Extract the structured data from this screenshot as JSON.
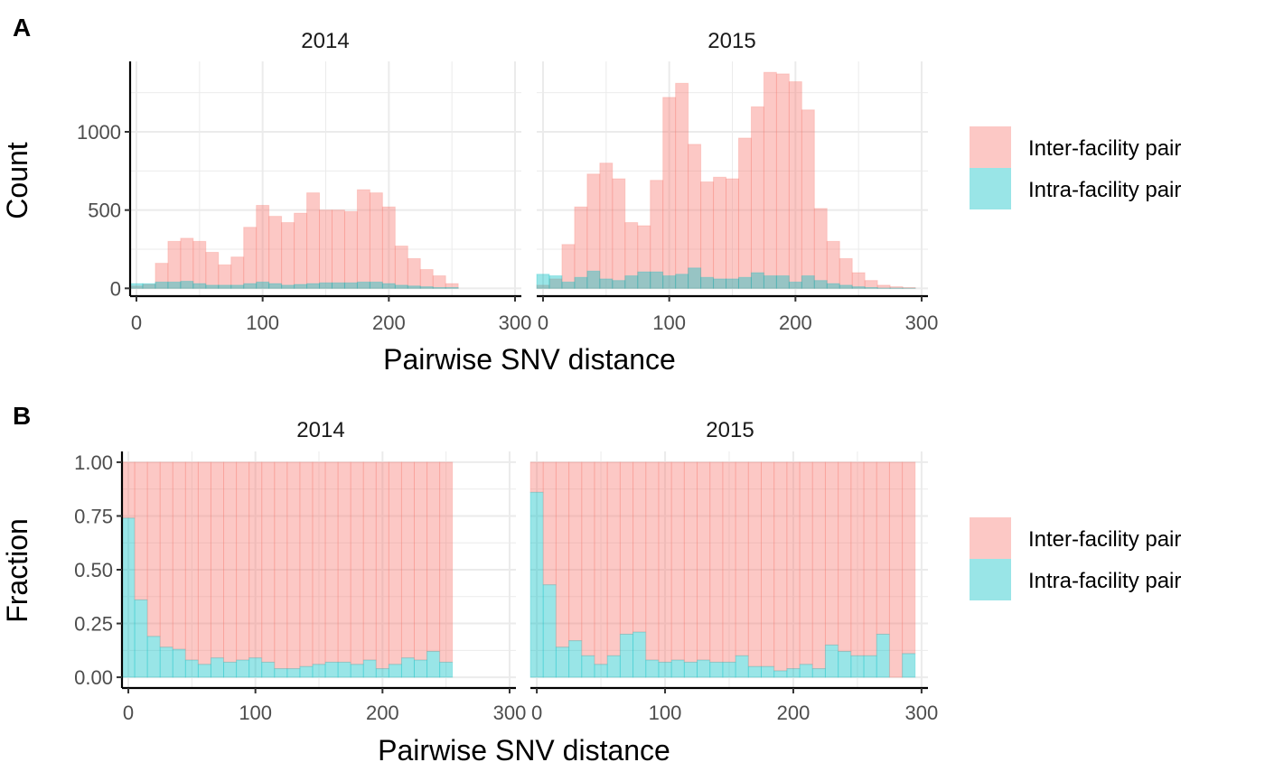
{
  "colors": {
    "inter": "#F8766D",
    "intra": "#00BFC4",
    "grid": "#EBEBEB",
    "axis": "#000000"
  },
  "panels": [
    {
      "tag": "A",
      "ylabel": "Count",
      "xlabel": "Pairwise SNV distance"
    },
    {
      "tag": "B",
      "ylabel": "Fraction",
      "xlabel": "Pairwise SNV distance"
    }
  ],
  "legend": {
    "items": [
      {
        "label": "Inter-facility pair",
        "color": "#F8766D"
      },
      {
        "label": "Intra-facility pair",
        "color": "#00BFC4"
      }
    ]
  },
  "chart_data": [
    {
      "type": "bar",
      "panel": "A",
      "position": "identity",
      "ylabel": "Count",
      "xlabel": "Pairwise SNV distance",
      "x_ticks": [
        0,
        100,
        200,
        300
      ],
      "y_ticks": [
        0,
        500,
        1000
      ],
      "xlim": [
        -5,
        305
      ],
      "ylim": [
        -50,
        1450
      ],
      "bin_width": 10,
      "facets": [
        {
          "title": "2014",
          "x": [
            0,
            10,
            20,
            30,
            40,
            50,
            60,
            70,
            80,
            90,
            100,
            110,
            120,
            130,
            140,
            150,
            160,
            170,
            180,
            190,
            200,
            210,
            220,
            230,
            240,
            250
          ],
          "series": [
            {
              "name": "Inter-facility pair",
              "values": [
                15,
                25,
                160,
                300,
                320,
                300,
                230,
                150,
                200,
                390,
                530,
                460,
                420,
                480,
                610,
                500,
                500,
                490,
                630,
                610,
                520,
                270,
                190,
                120,
                80,
                30
              ]
            },
            {
              "name": "Intra-facility pair",
              "values": [
                30,
                30,
                40,
                40,
                45,
                30,
                20,
                20,
                20,
                30,
                40,
                30,
                20,
                25,
                30,
                35,
                35,
                35,
                40,
                40,
                30,
                20,
                15,
                10,
                5,
                5
              ]
            }
          ]
        },
        {
          "title": "2015",
          "x": [
            0,
            10,
            20,
            30,
            40,
            50,
            60,
            70,
            80,
            90,
            100,
            110,
            120,
            130,
            140,
            150,
            160,
            170,
            180,
            190,
            200,
            210,
            220,
            230,
            240,
            250,
            260,
            270,
            280,
            290
          ],
          "series": [
            {
              "name": "Inter-facility pair",
              "values": [
                20,
                60,
                280,
                520,
                730,
                800,
                700,
                420,
                400,
                690,
                1220,
                1310,
                920,
                680,
                710,
                700,
                960,
                1160,
                1380,
                1370,
                1320,
                1140,
                510,
                300,
                190,
                100,
                50,
                20,
                10,
                5
              ]
            },
            {
              "name": "Intra-facility pair",
              "values": [
                90,
                80,
                40,
                70,
                110,
                60,
                50,
                80,
                105,
                105,
                80,
                90,
                130,
                70,
                60,
                60,
                70,
                100,
                80,
                80,
                40,
                80,
                50,
                30,
                20,
                10,
                5,
                2,
                2,
                1
              ]
            }
          ]
        }
      ]
    },
    {
      "type": "bar",
      "panel": "B",
      "position": "fill",
      "ylabel": "Fraction",
      "xlabel": "Pairwise SNV distance",
      "x_ticks": [
        0,
        100,
        200,
        300
      ],
      "y_ticks": [
        "0.00",
        "0.25",
        "0.50",
        "0.75",
        "1.00"
      ],
      "xlim": [
        -5,
        305
      ],
      "ylim": [
        -0.05,
        1.05
      ],
      "bin_width": 10,
      "facets": [
        {
          "title": "2014",
          "x": [
            0,
            10,
            20,
            30,
            40,
            50,
            60,
            70,
            80,
            90,
            100,
            110,
            120,
            130,
            140,
            150,
            160,
            170,
            180,
            190,
            200,
            210,
            220,
            230,
            240,
            250
          ],
          "series": [
            {
              "name": "Intra-facility pair",
              "values": [
                0.74,
                0.36,
                0.19,
                0.14,
                0.13,
                0.08,
                0.06,
                0.09,
                0.07,
                0.08,
                0.09,
                0.07,
                0.04,
                0.04,
                0.05,
                0.06,
                0.07,
                0.07,
                0.06,
                0.08,
                0.04,
                0.06,
                0.09,
                0.08,
                0.12,
                0.07
              ]
            },
            {
              "name": "Inter-facility pair",
              "values": [
                0.26,
                0.64,
                0.81,
                0.86,
                0.87,
                0.92,
                0.94,
                0.91,
                0.93,
                0.92,
                0.91,
                0.93,
                0.96,
                0.96,
                0.95,
                0.94,
                0.93,
                0.93,
                0.94,
                0.92,
                0.96,
                0.94,
                0.91,
                0.92,
                0.88,
                0.93
              ]
            }
          ]
        },
        {
          "title": "2015",
          "x": [
            0,
            10,
            20,
            30,
            40,
            50,
            60,
            70,
            80,
            90,
            100,
            110,
            120,
            130,
            140,
            150,
            160,
            170,
            180,
            190,
            200,
            210,
            220,
            230,
            240,
            250,
            260,
            270,
            280,
            290
          ],
          "series": [
            {
              "name": "Intra-facility pair",
              "values": [
                0.86,
                0.43,
                0.14,
                0.17,
                0.1,
                0.06,
                0.1,
                0.2,
                0.21,
                0.08,
                0.07,
                0.08,
                0.07,
                0.08,
                0.07,
                0.07,
                0.1,
                0.05,
                0.05,
                0.03,
                0.04,
                0.06,
                0.04,
                0.15,
                0.12,
                0.1,
                0.1,
                0.2,
                0.0,
                0.11
              ]
            },
            {
              "name": "Inter-facility pair",
              "values": [
                0.14,
                0.57,
                0.86,
                0.83,
                0.9,
                0.94,
                0.9,
                0.8,
                0.79,
                0.92,
                0.93,
                0.92,
                0.93,
                0.92,
                0.93,
                0.93,
                0.9,
                0.95,
                0.95,
                0.97,
                0.96,
                0.94,
                0.96,
                0.85,
                0.88,
                0.9,
                0.9,
                0.8,
                1.0,
                0.89
              ]
            }
          ]
        }
      ]
    }
  ]
}
